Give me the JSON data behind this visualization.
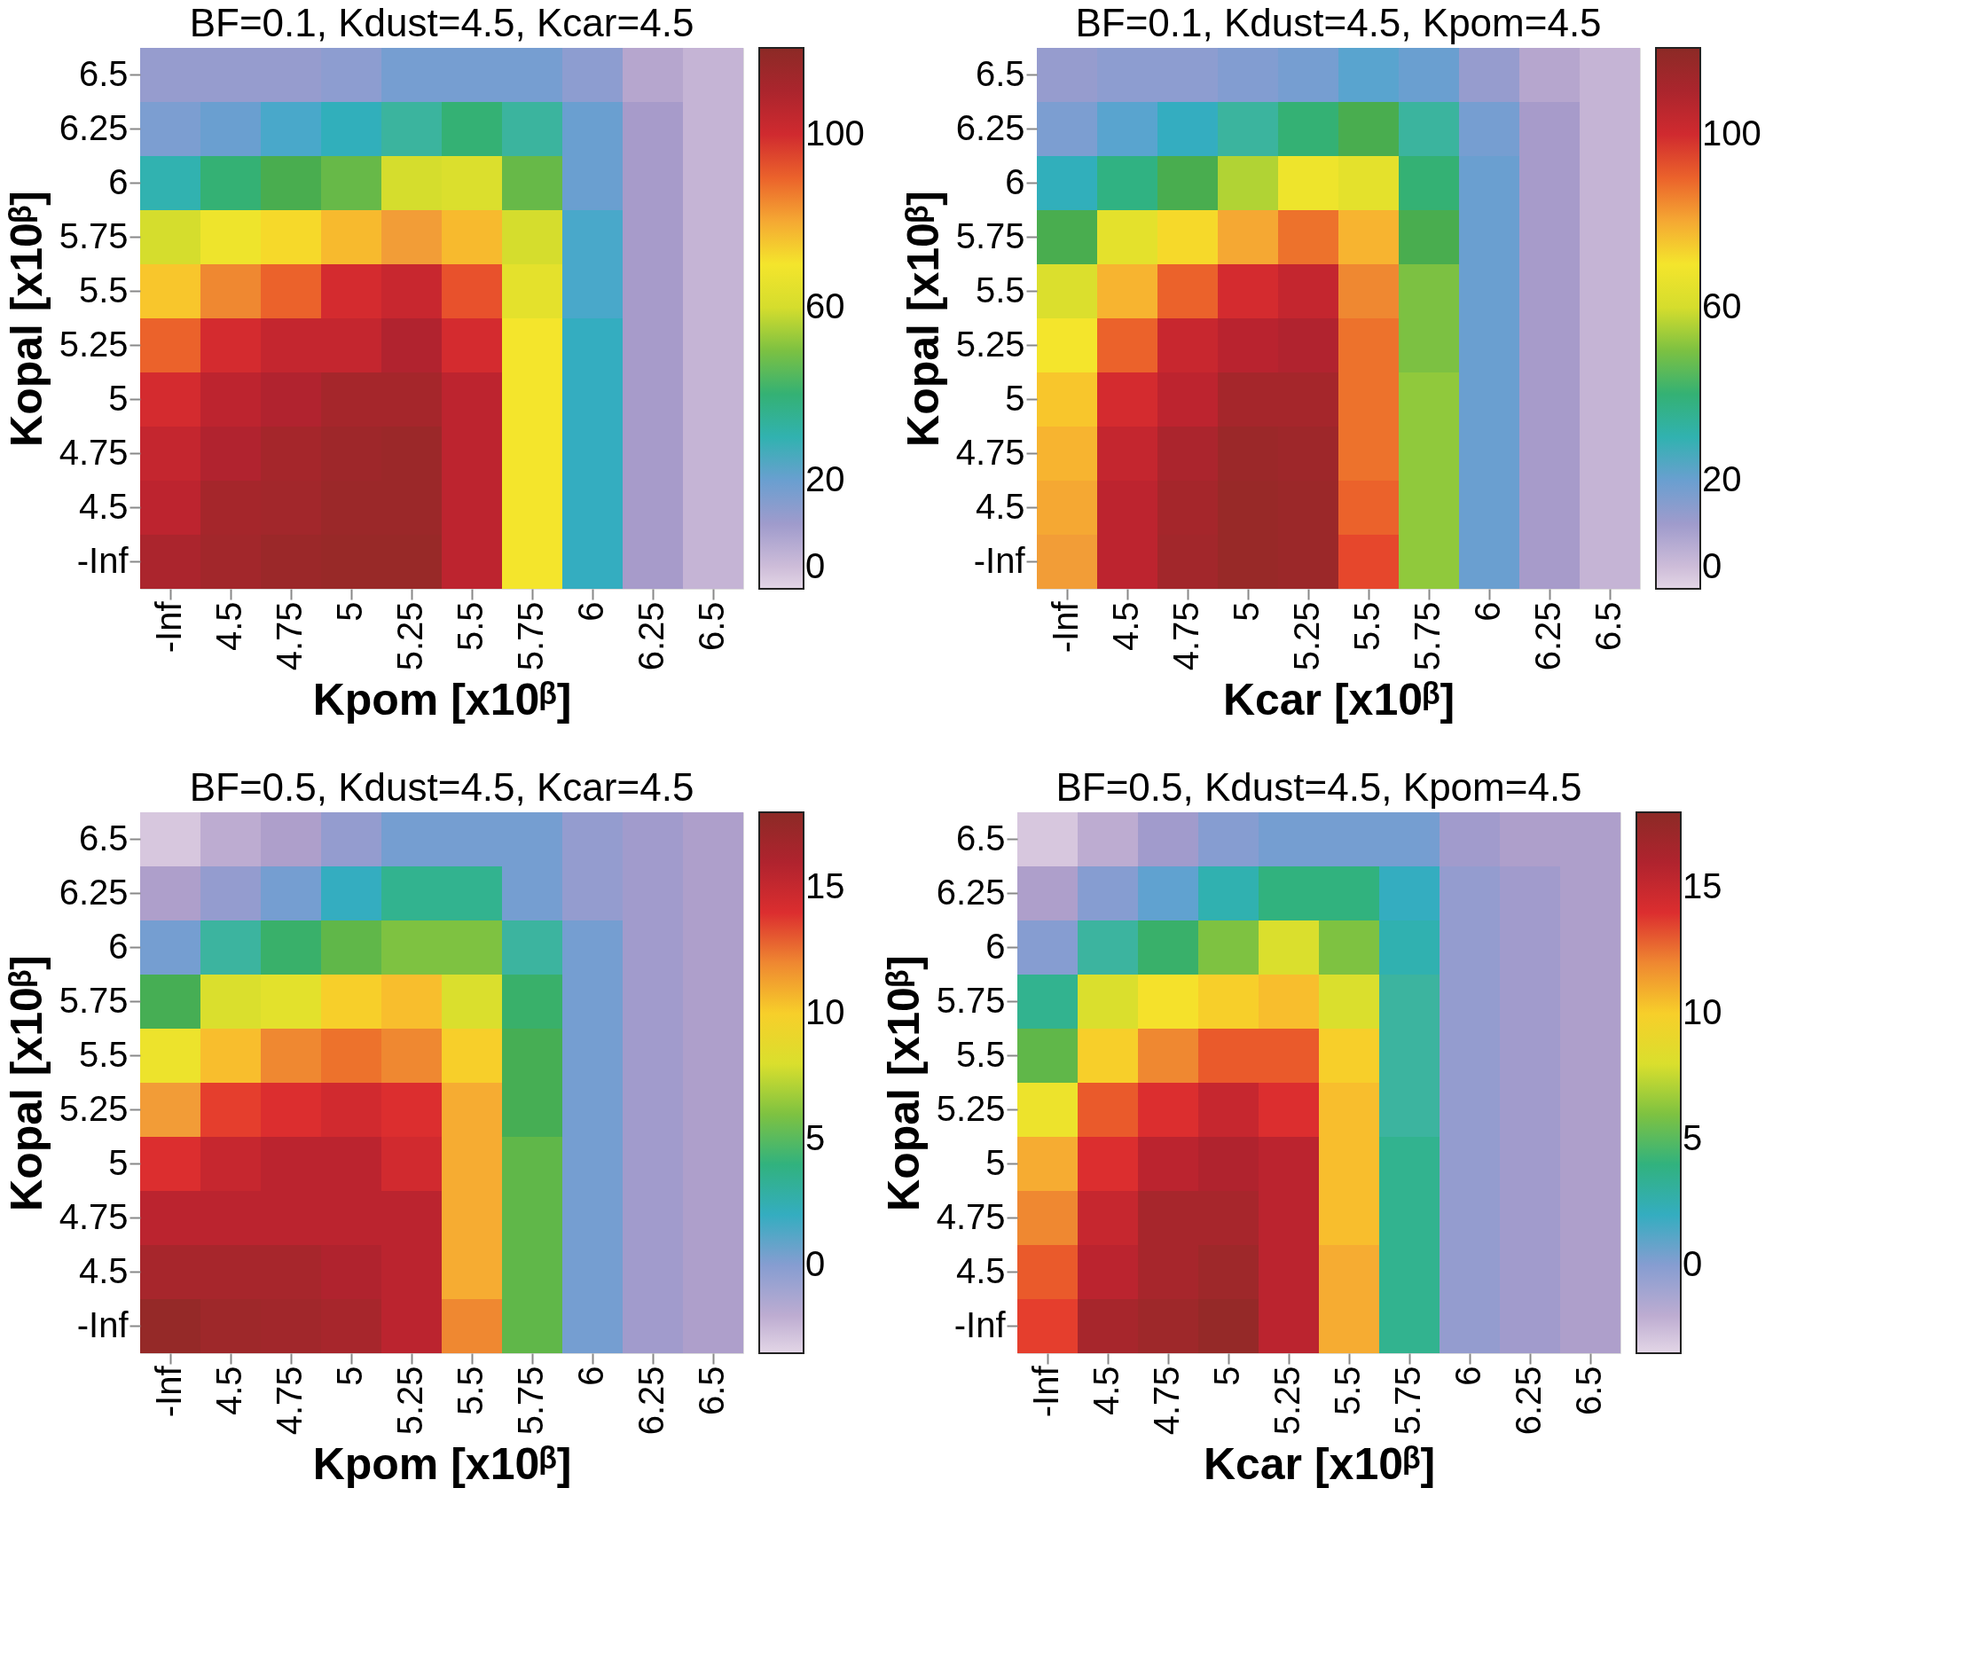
{
  "chart_data": [
    {
      "type": "heatmap",
      "title": "BF=0.1, Kdust=4.5, Kcar=4.5",
      "xlabel": "Kpom [x10ᵝ]",
      "ylabel": "Kopal [x10ᵝ]",
      "categories": [
        "-Inf",
        "4.5",
        "4.75",
        "5",
        "5.25",
        "5.5",
        "5.75",
        "6",
        "6.25",
        "6.5"
      ],
      "y_categories": [
        "6.5",
        "6.25",
        "6",
        "5.75",
        "5.5",
        "5.25",
        "5",
        "4.75",
        "4.5",
        "-Inf"
      ],
      "cells": [
        [
          12,
          12,
          12,
          14,
          18,
          18,
          18,
          14,
          5,
          2
        ],
        [
          17,
          20,
          24,
          28,
          33,
          40,
          33,
          20,
          8,
          2
        ],
        [
          30,
          40,
          45,
          48,
          60,
          62,
          48,
          20,
          8,
          2
        ],
        [
          60,
          68,
          72,
          77,
          82,
          77,
          60,
          24,
          8,
          2
        ],
        [
          75,
          85,
          90,
          99,
          102,
          92,
          65,
          24,
          8,
          2
        ],
        [
          90,
          99,
          103,
          103,
          108,
          99,
          70,
          27,
          8,
          2
        ],
        [
          99,
          105,
          108,
          112,
          112,
          105,
          70,
          27,
          8,
          2
        ],
        [
          103,
          108,
          112,
          114,
          115,
          105,
          70,
          27,
          8,
          2
        ],
        [
          105,
          112,
          113,
          115,
          115,
          105,
          70,
          27,
          8,
          2
        ],
        [
          110,
          113,
          115,
          116,
          116,
          105,
          70,
          27,
          8,
          2
        ]
      ],
      "clim": [
        -5,
        120
      ],
      "cticks": [
        0,
        20,
        60,
        100
      ],
      "colors": [
        "#e3d6e6",
        "#a99bc9",
        "#6a9fd0",
        "#3db4a0",
        "#49ad4f",
        "#cddb2e",
        "#f4e52c",
        "#f19a38",
        "#e3302e",
        "#b3222f",
        "#8c2a26"
      ]
    },
    {
      "type": "heatmap",
      "title": "BF=0.1, Kdust=4.5, Kpom=4.5",
      "xlabel": "Kcar [x10ᵝ]",
      "ylabel": "Kopal [x10ᵝ]",
      "categories": [
        "-Inf",
        "4.5",
        "4.75",
        "5",
        "5.25",
        "5.5",
        "5.75",
        "6",
        "6.25",
        "6.5"
      ],
      "y_categories": [
        "6.5",
        "6.25",
        "6",
        "5.75",
        "5.5",
        "5.25",
        "5",
        "4.75",
        "4.5",
        "-Inf"
      ],
      "cells": [
        [
          12,
          14,
          14,
          16,
          18,
          22,
          20,
          12,
          5,
          2
        ],
        [
          17,
          22,
          27,
          33,
          40,
          45,
          33,
          18,
          8,
          2
        ],
        [
          28,
          38,
          45,
          55,
          68,
          65,
          40,
          20,
          8,
          2
        ],
        [
          45,
          65,
          72,
          80,
          88,
          78,
          45,
          20,
          8,
          2
        ],
        [
          62,
          78,
          90,
          99,
          103,
          85,
          50,
          20,
          8,
          2
        ],
        [
          70,
          90,
          102,
          106,
          108,
          88,
          50,
          20,
          8,
          2
        ],
        [
          75,
          99,
          105,
          112,
          112,
          88,
          52,
          20,
          8,
          2
        ],
        [
          78,
          103,
          110,
          115,
          114,
          88,
          52,
          20,
          8,
          2
        ],
        [
          80,
          105,
          112,
          116,
          115,
          90,
          52,
          20,
          8,
          2
        ],
        [
          82,
          105,
          113,
          116,
          115,
          93,
          52,
          20,
          8,
          2
        ]
      ],
      "clim": [
        -5,
        120
      ],
      "cticks": [
        0,
        20,
        60,
        100
      ],
      "colors": [
        "#e3d6e6",
        "#a99bc9",
        "#6a9fd0",
        "#3db4a0",
        "#49ad4f",
        "#cddb2e",
        "#f4e52c",
        "#f19a38",
        "#e3302e",
        "#b3222f",
        "#8c2a26"
      ]
    },
    {
      "type": "heatmap",
      "title": "BF=0.5, Kdust=4.5, Kcar=4.5",
      "xlabel": "Kpom [x10ᵝ]",
      "ylabel": "Kopal [x10ᵝ]",
      "categories": [
        "-Inf",
        "4.5",
        "4.75",
        "5",
        "5.25",
        "5.5",
        "5.75",
        "6",
        "6.25",
        "6.5"
      ],
      "y_categories": [
        "6.5",
        "6.25",
        "6",
        "5.75",
        "5.5",
        "5.25",
        "5",
        "4.75",
        "4.5",
        "-Inf"
      ],
      "cells": [
        [
          -3,
          -2,
          -1.5,
          -0.5,
          0.5,
          0.5,
          0.5,
          -0.5,
          -1,
          -1.5
        ],
        [
          -1.5,
          -0.5,
          0.5,
          2,
          3.5,
          3.5,
          0.5,
          -0.5,
          -1,
          -1.5
        ],
        [
          0.5,
          3,
          4.5,
          5.5,
          6,
          6,
          3,
          0.5,
          -1,
          -1.5
        ],
        [
          5,
          8,
          8.5,
          10,
          10.5,
          8,
          4.5,
          0.5,
          -1,
          -1.5
        ],
        [
          9,
          10.5,
          12,
          12.5,
          12,
          10,
          5,
          0.5,
          -1,
          -1.5
        ],
        [
          11.5,
          13.5,
          14,
          14.5,
          14,
          11,
          5,
          0.5,
          -1,
          -1.5
        ],
        [
          14,
          15,
          15.5,
          15.5,
          14.5,
          11,
          5.5,
          0.5,
          -1,
          -1.5
        ],
        [
          15.5,
          15.5,
          15.5,
          15.5,
          15.5,
          11,
          5.5,
          0.5,
          -1,
          -1.5
        ],
        [
          16.5,
          16.5,
          16.5,
          16,
          15.5,
          11,
          5.5,
          0.5,
          -1,
          -1.5
        ],
        [
          17.5,
          17,
          16.8,
          16.5,
          15.5,
          12,
          5.5,
          0.5,
          -1,
          -1.5
        ]
      ],
      "clim": [
        -3.5,
        18
      ],
      "cticks": [
        0,
        5,
        10,
        15
      ],
      "colors": [
        "#e3d6e6",
        "#a99bc9",
        "#6a9fd0",
        "#3db4a0",
        "#49ad4f",
        "#cddb2e",
        "#f4e52c",
        "#f19a38",
        "#e3302e",
        "#b3222f",
        "#8c2a26"
      ]
    },
    {
      "type": "heatmap",
      "title": "BF=0.5, Kdust=4.5, Kpom=4.5",
      "xlabel": "Kcar [x10ᵝ]",
      "ylabel": "Kopal [x10ᵝ]",
      "categories": [
        "-Inf",
        "4.5",
        "4.75",
        "5",
        "5.25",
        "5.5",
        "5.75",
        "6",
        "6.25",
        "6.5"
      ],
      "y_categories": [
        "6.5",
        "6.25",
        "6",
        "5.75",
        "5.5",
        "5.25",
        "5",
        "4.75",
        "4.5",
        "-Inf"
      ],
      "cells": [
        [
          -3,
          -2,
          -1,
          0,
          0.5,
          0.5,
          0.5,
          -1,
          -1.5,
          -1.5
        ],
        [
          -1.5,
          0,
          1,
          2.5,
          4,
          4,
          2,
          -0.5,
          -1,
          -1.5
        ],
        [
          0,
          3,
          4.5,
          6,
          8,
          6,
          2.5,
          -0.5,
          -1,
          -1.5
        ],
        [
          3.5,
          8,
          9.5,
          10,
          10.5,
          8,
          3,
          -0.5,
          -1,
          -1.5
        ],
        [
          5.5,
          10,
          12,
          13,
          13,
          10,
          3,
          -0.5,
          -1,
          -1.5
        ],
        [
          9,
          13,
          14,
          15,
          14,
          10.5,
          3,
          -0.5,
          -1,
          -1.5
        ],
        [
          11,
          14,
          15.5,
          16,
          15.5,
          10.5,
          3.5,
          -0.5,
          -1,
          -1.5
        ],
        [
          12,
          15,
          16.5,
          16.5,
          15.5,
          10.5,
          3.5,
          -0.5,
          -1,
          -1.5
        ],
        [
          13,
          15.5,
          16.5,
          17,
          15.5,
          11,
          3.5,
          -0.5,
          -1,
          -1.5
        ],
        [
          13.5,
          16.5,
          17,
          17.5,
          15.5,
          11,
          3.5,
          -0.5,
          -1,
          -1.5
        ]
      ],
      "clim": [
        -3.5,
        18
      ],
      "cticks": [
        0,
        5,
        10,
        15
      ],
      "colors": [
        "#e3d6e6",
        "#a99bc9",
        "#6a9fd0",
        "#3db4a0",
        "#49ad4f",
        "#cddb2e",
        "#f4e52c",
        "#f19a38",
        "#e3302e",
        "#b3222f",
        "#8c2a26"
      ]
    }
  ]
}
